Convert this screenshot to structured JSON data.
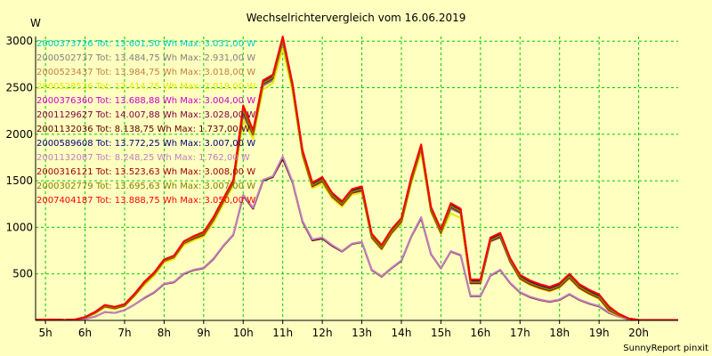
{
  "chart_data": {
    "type": "line",
    "title": "Wechselrichtervergleich vom 16.06.2019",
    "ylabel": "W",
    "footer": "SunnyReport pinxit",
    "ylim": [
      0,
      3050
    ],
    "yticks": [
      500,
      1000,
      1500,
      2000,
      2500,
      3000
    ],
    "x_ticks": [
      "5h",
      "6h",
      "7h",
      "8h",
      "9h",
      "10h",
      "11h",
      "12h",
      "13h",
      "14h",
      "15h",
      "16h",
      "17h",
      "18h",
      "19h",
      "20h"
    ],
    "xlim": [
      4.75,
      21.0
    ],
    "grid": true,
    "legend_position": "top-left",
    "x": [
      4.75,
      5.0,
      5.5,
      5.75,
      6.0,
      6.25,
      6.5,
      6.75,
      7.0,
      7.25,
      7.5,
      7.75,
      8.0,
      8.25,
      8.5,
      8.75,
      9.0,
      9.25,
      9.5,
      9.75,
      10.0,
      10.25,
      10.5,
      10.75,
      11.0,
      11.25,
      11.5,
      11.75,
      12.0,
      12.25,
      12.5,
      12.75,
      13.0,
      13.25,
      13.5,
      13.75,
      14.0,
      14.25,
      14.5,
      14.75,
      15.0,
      15.25,
      15.5,
      15.75,
      16.0,
      16.25,
      16.5,
      16.75,
      17.0,
      17.25,
      17.5,
      17.75,
      18.0,
      18.25,
      18.5,
      18.75,
      19.0,
      19.25,
      19.5,
      19.75,
      20.0,
      20.5,
      21.0
    ],
    "series": [
      {
        "name": "2000373726",
        "legend": "2000373726 Tot: 13.601,50 Wh Max: 3.031,00 W",
        "color": "#00cccc",
        "values": [
          5,
          10,
          5,
          10,
          30,
          80,
          150,
          130,
          160,
          270,
          400,
          500,
          640,
          680,
          830,
          880,
          920,
          1080,
          1280,
          1480,
          2250,
          2000,
          2550,
          2600,
          3000,
          2500,
          1800,
          1450,
          1500,
          1340,
          1250,
          1380,
          1400,
          900,
          780,
          950,
          1060,
          1500,
          1850,
          1190,
          950,
          1220,
          1170,
          410,
          410,
          860,
          900,
          640,
          460,
          400,
          360,
          330,
          370,
          470,
          360,
          300,
          250,
          120,
          60,
          20,
          5,
          5,
          5
        ]
      },
      {
        "name": "2000502737",
        "legend": "2000502737 Tot: 13.484,75 Wh Max: 2.931,00 W",
        "color": "#808080",
        "values": [
          5,
          10,
          5,
          10,
          30,
          80,
          150,
          130,
          160,
          270,
          400,
          500,
          640,
          680,
          830,
          880,
          920,
          1080,
          1280,
          1480,
          2210,
          1970,
          2520,
          2580,
          2931,
          2480,
          1780,
          1440,
          1490,
          1330,
          1240,
          1370,
          1390,
          890,
          770,
          940,
          1050,
          1480,
          1830,
          1180,
          940,
          1200,
          1150,
          400,
          410,
          850,
          890,
          630,
          450,
          390,
          350,
          320,
          360,
          460,
          350,
          290,
          240,
          110,
          50,
          20,
          5,
          5,
          5
        ]
      },
      {
        "name": "2000523437",
        "legend": "2000523437 Tot: 13.984,75 Wh Max: 3.018,00 W",
        "color": "#c08040",
        "values": [
          5,
          10,
          5,
          10,
          35,
          90,
          160,
          140,
          170,
          280,
          410,
          510,
          650,
          690,
          840,
          900,
          940,
          1100,
          1300,
          1500,
          2280,
          2020,
          2560,
          2620,
          3018,
          2520,
          1810,
          1460,
          1520,
          1350,
          1260,
          1390,
          1420,
          910,
          790,
          960,
          1080,
          1520,
          1870,
          1200,
          960,
          1240,
          1180,
          420,
          420,
          870,
          920,
          650,
          470,
          410,
          370,
          340,
          380,
          480,
          370,
          310,
          260,
          130,
          60,
          20,
          5,
          5,
          5
        ]
      },
      {
        "name": "2000528526",
        "legend": "2000528526 Tot: 13.414,75 Wh Max: 2.919,00 W",
        "color": "#e8e800",
        "values": [
          5,
          10,
          5,
          10,
          30,
          70,
          140,
          120,
          150,
          260,
          380,
          480,
          620,
          660,
          810,
          860,
          900,
          1050,
          1250,
          1450,
          2150,
          1950,
          2480,
          2550,
          2919,
          2450,
          1760,
          1420,
          1470,
          1310,
          1220,
          1350,
          1370,
          880,
          760,
          930,
          1040,
          1470,
          1800,
          1160,
          930,
          1150,
          1100,
          400,
          400,
          880,
          930,
          630,
          440,
          380,
          340,
          310,
          350,
          450,
          340,
          280,
          230,
          100,
          50,
          20,
          5,
          5,
          5
        ]
      },
      {
        "name": "2000376360",
        "legend": "2000376360 Tot: 13.688,88 Wh Max: 3.004,00 W",
        "color": "#cc00cc",
        "values": [
          5,
          10,
          5,
          10,
          30,
          85,
          155,
          135,
          165,
          275,
          405,
          505,
          645,
          685,
          835,
          890,
          930,
          1090,
          1290,
          1490,
          2260,
          2010,
          2550,
          2610,
          3004,
          2510,
          1800,
          1450,
          1510,
          1340,
          1250,
          1380,
          1410,
          900,
          780,
          950,
          1070,
          1510,
          1860,
          1190,
          950,
          1230,
          1170,
          410,
          410,
          860,
          910,
          640,
          460,
          400,
          360,
          330,
          370,
          470,
          360,
          300,
          250,
          120,
          60,
          20,
          5,
          5,
          5
        ]
      },
      {
        "name": "2001129627",
        "legend": "2001129627 Tot: 14.007,88 Wh Max: 3.028,00 W",
        "color": "#800040",
        "values": [
          5,
          10,
          5,
          10,
          35,
          90,
          165,
          145,
          175,
          285,
          415,
          515,
          655,
          695,
          845,
          905,
          945,
          1105,
          1305,
          1505,
          2300,
          2030,
          2570,
          2630,
          3028,
          2530,
          1820,
          1470,
          1530,
          1360,
          1270,
          1400,
          1430,
          920,
          800,
          970,
          1090,
          1530,
          1880,
          1210,
          970,
          1250,
          1190,
          430,
          430,
          880,
          930,
          660,
          480,
          420,
          380,
          350,
          390,
          490,
          380,
          320,
          270,
          140,
          70,
          20,
          5,
          5,
          5
        ]
      },
      {
        "name": "2001132036",
        "legend": "2001132036 Tot: 8.138,75 Wh Max: 1.737,00 W",
        "color": "#600000",
        "values": [
          5,
          5,
          5,
          5,
          15,
          40,
          90,
          80,
          110,
          170,
          240,
          300,
          390,
          410,
          500,
          540,
          560,
          660,
          800,
          920,
          1340,
          1200,
          1500,
          1540,
          1737,
          1480,
          1060,
          860,
          880,
          800,
          740,
          820,
          840,
          540,
          470,
          560,
          640,
          900,
          1100,
          710,
          560,
          740,
          700,
          260,
          260,
          480,
          540,
          400,
          300,
          250,
          220,
          200,
          220,
          280,
          220,
          180,
          150,
          80,
          40,
          10,
          5,
          5,
          5
        ]
      },
      {
        "name": "2000589608",
        "legend": "2000589608 Tot: 13.772,25 Wh Max: 3.007,00 W",
        "color": "#000080",
        "values": [
          5,
          10,
          5,
          10,
          30,
          85,
          155,
          135,
          165,
          275,
          405,
          505,
          645,
          685,
          835,
          890,
          930,
          1090,
          1290,
          1490,
          2270,
          2015,
          2555,
          2615,
          3007,
          2515,
          1805,
          1455,
          1515,
          1345,
          1255,
          1385,
          1415,
          905,
          785,
          955,
          1075,
          1515,
          1865,
          1195,
          955,
          1235,
          1175,
          415,
          415,
          865,
          915,
          645,
          465,
          405,
          365,
          335,
          375,
          475,
          365,
          305,
          255,
          125,
          60,
          20,
          5,
          5,
          5
        ]
      },
      {
        "name": "2001132087",
        "legend": "2001132087 Tot: 8.248,25 Wh Max: 1.762,00 W",
        "color": "#c080c0",
        "values": [
          5,
          5,
          5,
          5,
          15,
          40,
          90,
          80,
          110,
          170,
          245,
          305,
          395,
          415,
          505,
          545,
          565,
          665,
          805,
          925,
          1350,
          1210,
          1510,
          1550,
          1762,
          1490,
          1070,
          870,
          890,
          810,
          745,
          825,
          845,
          545,
          475,
          565,
          645,
          905,
          1110,
          715,
          565,
          745,
          705,
          265,
          265,
          485,
          545,
          405,
          305,
          255,
          225,
          205,
          225,
          285,
          225,
          185,
          155,
          85,
          40,
          10,
          5,
          5,
          5
        ]
      },
      {
        "name": "2000316121",
        "legend": "2000316121 Tot: 13.523,63 Wh Max: 3.008,00 W",
        "color": "#a00000",
        "values": [
          5,
          10,
          5,
          10,
          30,
          80,
          150,
          130,
          160,
          270,
          400,
          500,
          640,
          680,
          830,
          880,
          920,
          1080,
          1280,
          1480,
          2240,
          2000,
          2540,
          2600,
          3008,
          2500,
          1790,
          1440,
          1500,
          1330,
          1240,
          1370,
          1400,
          890,
          770,
          940,
          1060,
          1500,
          1850,
          1180,
          940,
          1220,
          1160,
          400,
          400,
          850,
          900,
          630,
          450,
          390,
          350,
          320,
          360,
          460,
          350,
          290,
          240,
          110,
          55,
          20,
          5,
          5,
          5
        ]
      },
      {
        "name": "2000302779",
        "legend": "2000302779 Tot: 13.695,63 Wh Max: 3.007,00 W",
        "color": "#808000",
        "values": [
          5,
          10,
          5,
          10,
          30,
          85,
          155,
          135,
          165,
          275,
          405,
          505,
          645,
          685,
          835,
          890,
          930,
          1090,
          1290,
          1490,
          2260,
          2010,
          2550,
          2610,
          3007,
          2510,
          1800,
          1450,
          1510,
          1340,
          1250,
          1380,
          1410,
          900,
          780,
          950,
          1070,
          1510,
          1860,
          1190,
          950,
          1230,
          1170,
          410,
          410,
          860,
          910,
          640,
          460,
          400,
          360,
          330,
          370,
          470,
          360,
          300,
          250,
          120,
          60,
          20,
          5,
          5,
          5
        ]
      },
      {
        "name": "2007404187",
        "legend": "2007404187 Tot: 13.888,75 Wh Max: 3.050,00 W",
        "color": "#ff0000",
        "values": [
          5,
          10,
          5,
          10,
          35,
          90,
          165,
          145,
          175,
          285,
          415,
          515,
          655,
          695,
          850,
          905,
          950,
          1110,
          1310,
          1510,
          2310,
          2040,
          2580,
          2640,
          3050,
          2540,
          1830,
          1480,
          1540,
          1370,
          1280,
          1410,
          1440,
          930,
          810,
          980,
          1100,
          1540,
          1890,
          1220,
          980,
          1260,
          1200,
          440,
          440,
          890,
          940,
          670,
          490,
          430,
          390,
          360,
          400,
          500,
          390,
          330,
          280,
          150,
          70,
          20,
          5,
          5,
          5
        ]
      }
    ]
  }
}
